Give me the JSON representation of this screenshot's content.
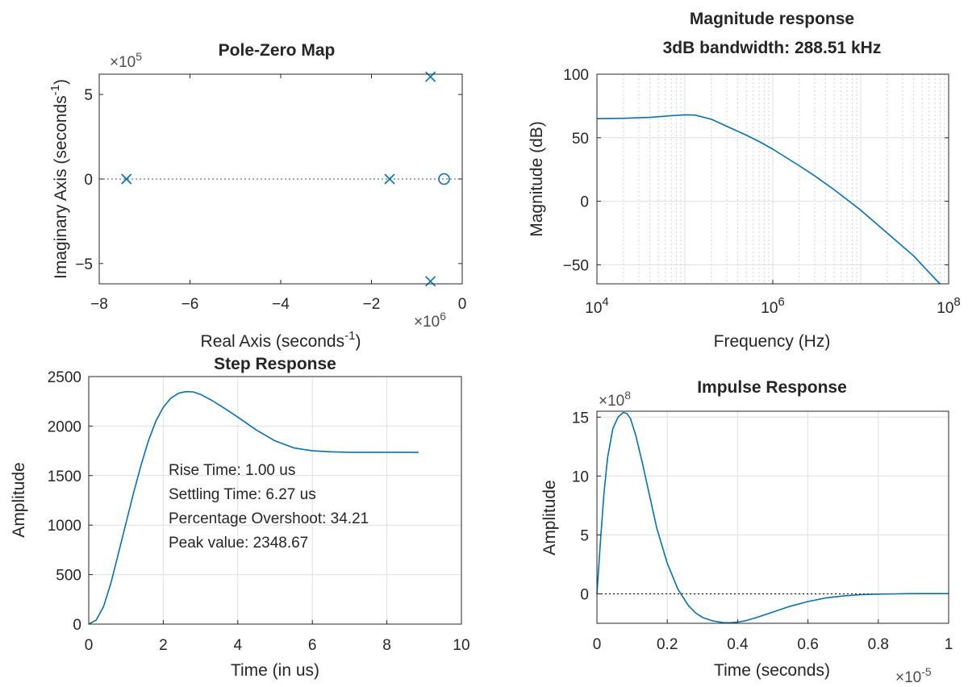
{
  "chart_data": [
    {
      "id": "pz",
      "type": "scatter",
      "title": "Pole-Zero Map",
      "xlabel": "Real Axis (seconds",
      "xlabel_sup": "-1",
      "xlabel_end": ")",
      "ylabel": "Imaginary Axis (seconds",
      "ylabel_sup": "-1",
      "ylabel_end": ")",
      "x_multiplier": "×10",
      "x_multiplier_exp": "6",
      "y_multiplier": "×10",
      "y_multiplier_exp": "5",
      "xlim": [
        -8,
        0
      ],
      "ylim": [
        -6.2,
        6.2
      ],
      "xticks": [
        -8,
        -6,
        -4,
        -2,
        0
      ],
      "yticks": [
        -5,
        0,
        5
      ],
      "grid": false,
      "reference_line": {
        "y": 0,
        "style": "dotted"
      },
      "poles": [
        {
          "x": -7.4,
          "y": 0
        },
        {
          "x": -1.6,
          "y": 0
        },
        {
          "x": -0.7,
          "y": 6.05
        },
        {
          "x": -0.7,
          "y": -6.05
        }
      ],
      "zeros": [
        {
          "x": -0.4,
          "y": 0
        }
      ]
    },
    {
      "id": "mag",
      "type": "line",
      "title": "Magnitude response",
      "subtitle": "3dB bandwidth: 288.51 kHz",
      "xlabel": "Frequency  (Hz)",
      "ylabel": "Magnitude (dB)",
      "xscale": "log",
      "xlim": [
        10000,
        100000000
      ],
      "ylim": [
        -65,
        100
      ],
      "xticks": [
        {
          "base": "10",
          "exp": "4",
          "value": 10000
        },
        {
          "base": "10",
          "exp": "6",
          "value": 1000000
        },
        {
          "base": "10",
          "exp": "8",
          "value": 100000000
        }
      ],
      "yticks": [
        -50,
        0,
        50,
        100
      ],
      "grid": true,
      "minor_grid": true,
      "x": [
        10000,
        20000,
        40000,
        70000,
        100000,
        130000,
        200000,
        300000,
        500000,
        700000,
        1000000,
        2000000,
        3000000,
        5000000,
        10000000,
        20000000,
        40000000,
        70000000,
        80000000
      ],
      "y": [
        65,
        65.3,
        66,
        67.3,
        68,
        67.8,
        64.5,
        59,
        52,
        47,
        41,
        28,
        20,
        9,
        -7,
        -25,
        -43,
        -61,
        -65
      ]
    },
    {
      "id": "step",
      "type": "line",
      "title": "Step Response",
      "xlabel": "Time (in us)",
      "ylabel": "Amplitude",
      "xlim": [
        0,
        10
      ],
      "ylim": [
        0,
        2500
      ],
      "xticks": [
        0,
        2,
        4,
        6,
        8,
        10
      ],
      "yticks": [
        0,
        500,
        1000,
        1500,
        2000,
        2500
      ],
      "grid": true,
      "x": [
        0,
        0.2,
        0.4,
        0.6,
        0.8,
        1.0,
        1.2,
        1.4,
        1.6,
        1.8,
        2.0,
        2.2,
        2.4,
        2.6,
        2.8,
        3.0,
        3.3,
        3.6,
        4.0,
        4.5,
        5.0,
        5.5,
        6.0,
        6.5,
        7.0,
        7.5,
        8.0,
        8.5,
        8.85
      ],
      "y": [
        0,
        40,
        180,
        420,
        720,
        1020,
        1320,
        1600,
        1850,
        2050,
        2190,
        2280,
        2330,
        2348,
        2345,
        2320,
        2260,
        2190,
        2090,
        1960,
        1850,
        1780,
        1750,
        1740,
        1735,
        1735,
        1735,
        1735,
        1735
      ],
      "annotations": [
        "Rise Time: 1.00 us",
        "Settling Time: 6.27 us",
        "Percentage Overshoot: 34.21",
        "Peak value: 2348.67"
      ]
    },
    {
      "id": "imp",
      "type": "line",
      "title": "Impulse Response",
      "xlabel": "Time (seconds)",
      "ylabel": "Amplitude",
      "x_multiplier": "×10",
      "x_multiplier_exp": "-5",
      "y_multiplier": "×10",
      "y_multiplier_exp": "8",
      "xlim": [
        0,
        1
      ],
      "ylim": [
        -2.5,
        15.5
      ],
      "xticks": [
        0,
        0.2,
        0.4,
        0.6,
        0.8,
        1
      ],
      "xtick_labels": [
        "0",
        "0.2",
        "0.4",
        "0.6",
        "0.8",
        "1"
      ],
      "yticks": [
        0,
        5,
        10,
        15
      ],
      "grid": true,
      "reference_line": {
        "y": 0,
        "style": "dotted"
      },
      "x": [
        0,
        0.01,
        0.02,
        0.03,
        0.045,
        0.06,
        0.075,
        0.085,
        0.095,
        0.11,
        0.13,
        0.15,
        0.17,
        0.2,
        0.23,
        0.26,
        0.28,
        0.3,
        0.33,
        0.36,
        0.38,
        0.4,
        0.42,
        0.45,
        0.5,
        0.55,
        0.6,
        0.65,
        0.7,
        0.75,
        0.8,
        0.85,
        0.9,
        0.95,
        1.0
      ],
      "y": [
        0,
        4.5,
        8.5,
        11.5,
        14.0,
        15.0,
        15.4,
        15.3,
        14.9,
        13.5,
        11.0,
        8.3,
        5.6,
        2.6,
        0.4,
        -1.0,
        -1.6,
        -2.0,
        -2.3,
        -2.45,
        -2.45,
        -2.4,
        -2.3,
        -2.05,
        -1.55,
        -1.05,
        -0.65,
        -0.35,
        -0.18,
        -0.07,
        -0.02,
        0,
        0.02,
        0.02,
        0.02
      ]
    }
  ],
  "colors": {
    "series": "#0072BD",
    "axes": "#262626",
    "grid": "#dfdfdf",
    "minor_grid": "#d0d0d0",
    "reference": "#000000"
  }
}
